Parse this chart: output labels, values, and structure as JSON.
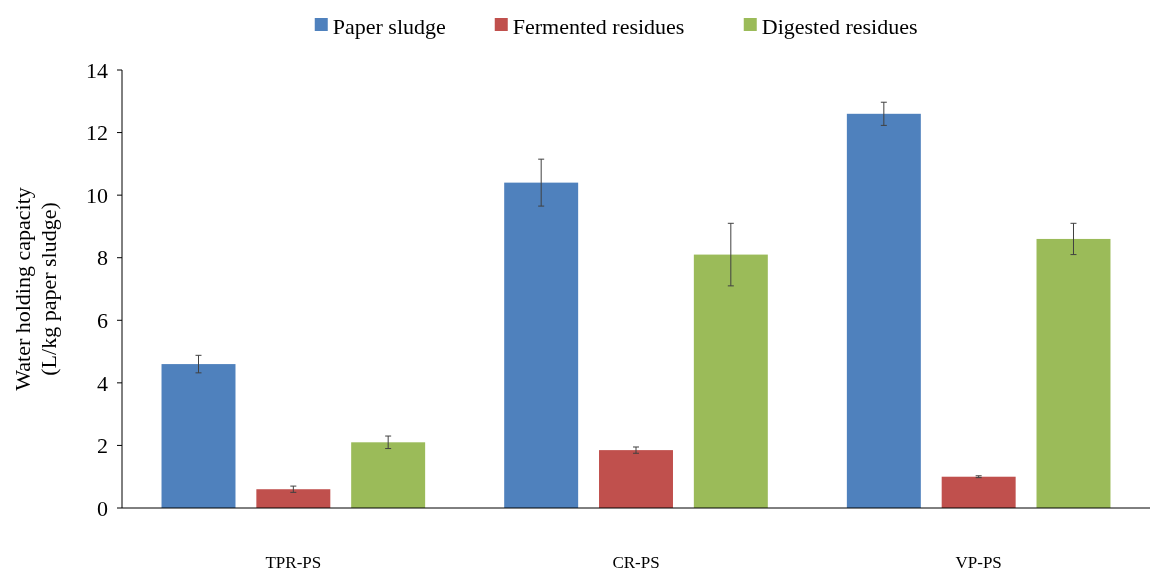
{
  "chart_data": {
    "type": "bar",
    "ylabel": "Water holding capacity\n(L/kg paper sludge)",
    "categories": [
      "TPR-PS",
      "CR-PS",
      "VP-PS"
    ],
    "series": [
      {
        "name": "Paper sludge",
        "color": "#4f81bd",
        "values": [
          4.6,
          10.4,
          12.6
        ],
        "errors": [
          0.28,
          0.75,
          0.37
        ]
      },
      {
        "name": "Fermented residues",
        "color": "#c0504d",
        "values": [
          0.6,
          1.85,
          1.0
        ],
        "errors": [
          0.1,
          0.1,
          0.03
        ]
      },
      {
        "name": "Digested residues",
        "color": "#9bbb59",
        "values": [
          2.1,
          8.1,
          8.6
        ],
        "errors": [
          0.2,
          1.0,
          0.5
        ]
      }
    ],
    "ylim": [
      0,
      14
    ],
    "yticks": [
      0,
      2,
      4,
      6,
      8,
      10,
      12,
      14
    ],
    "grid": false,
    "legend": "top"
  }
}
